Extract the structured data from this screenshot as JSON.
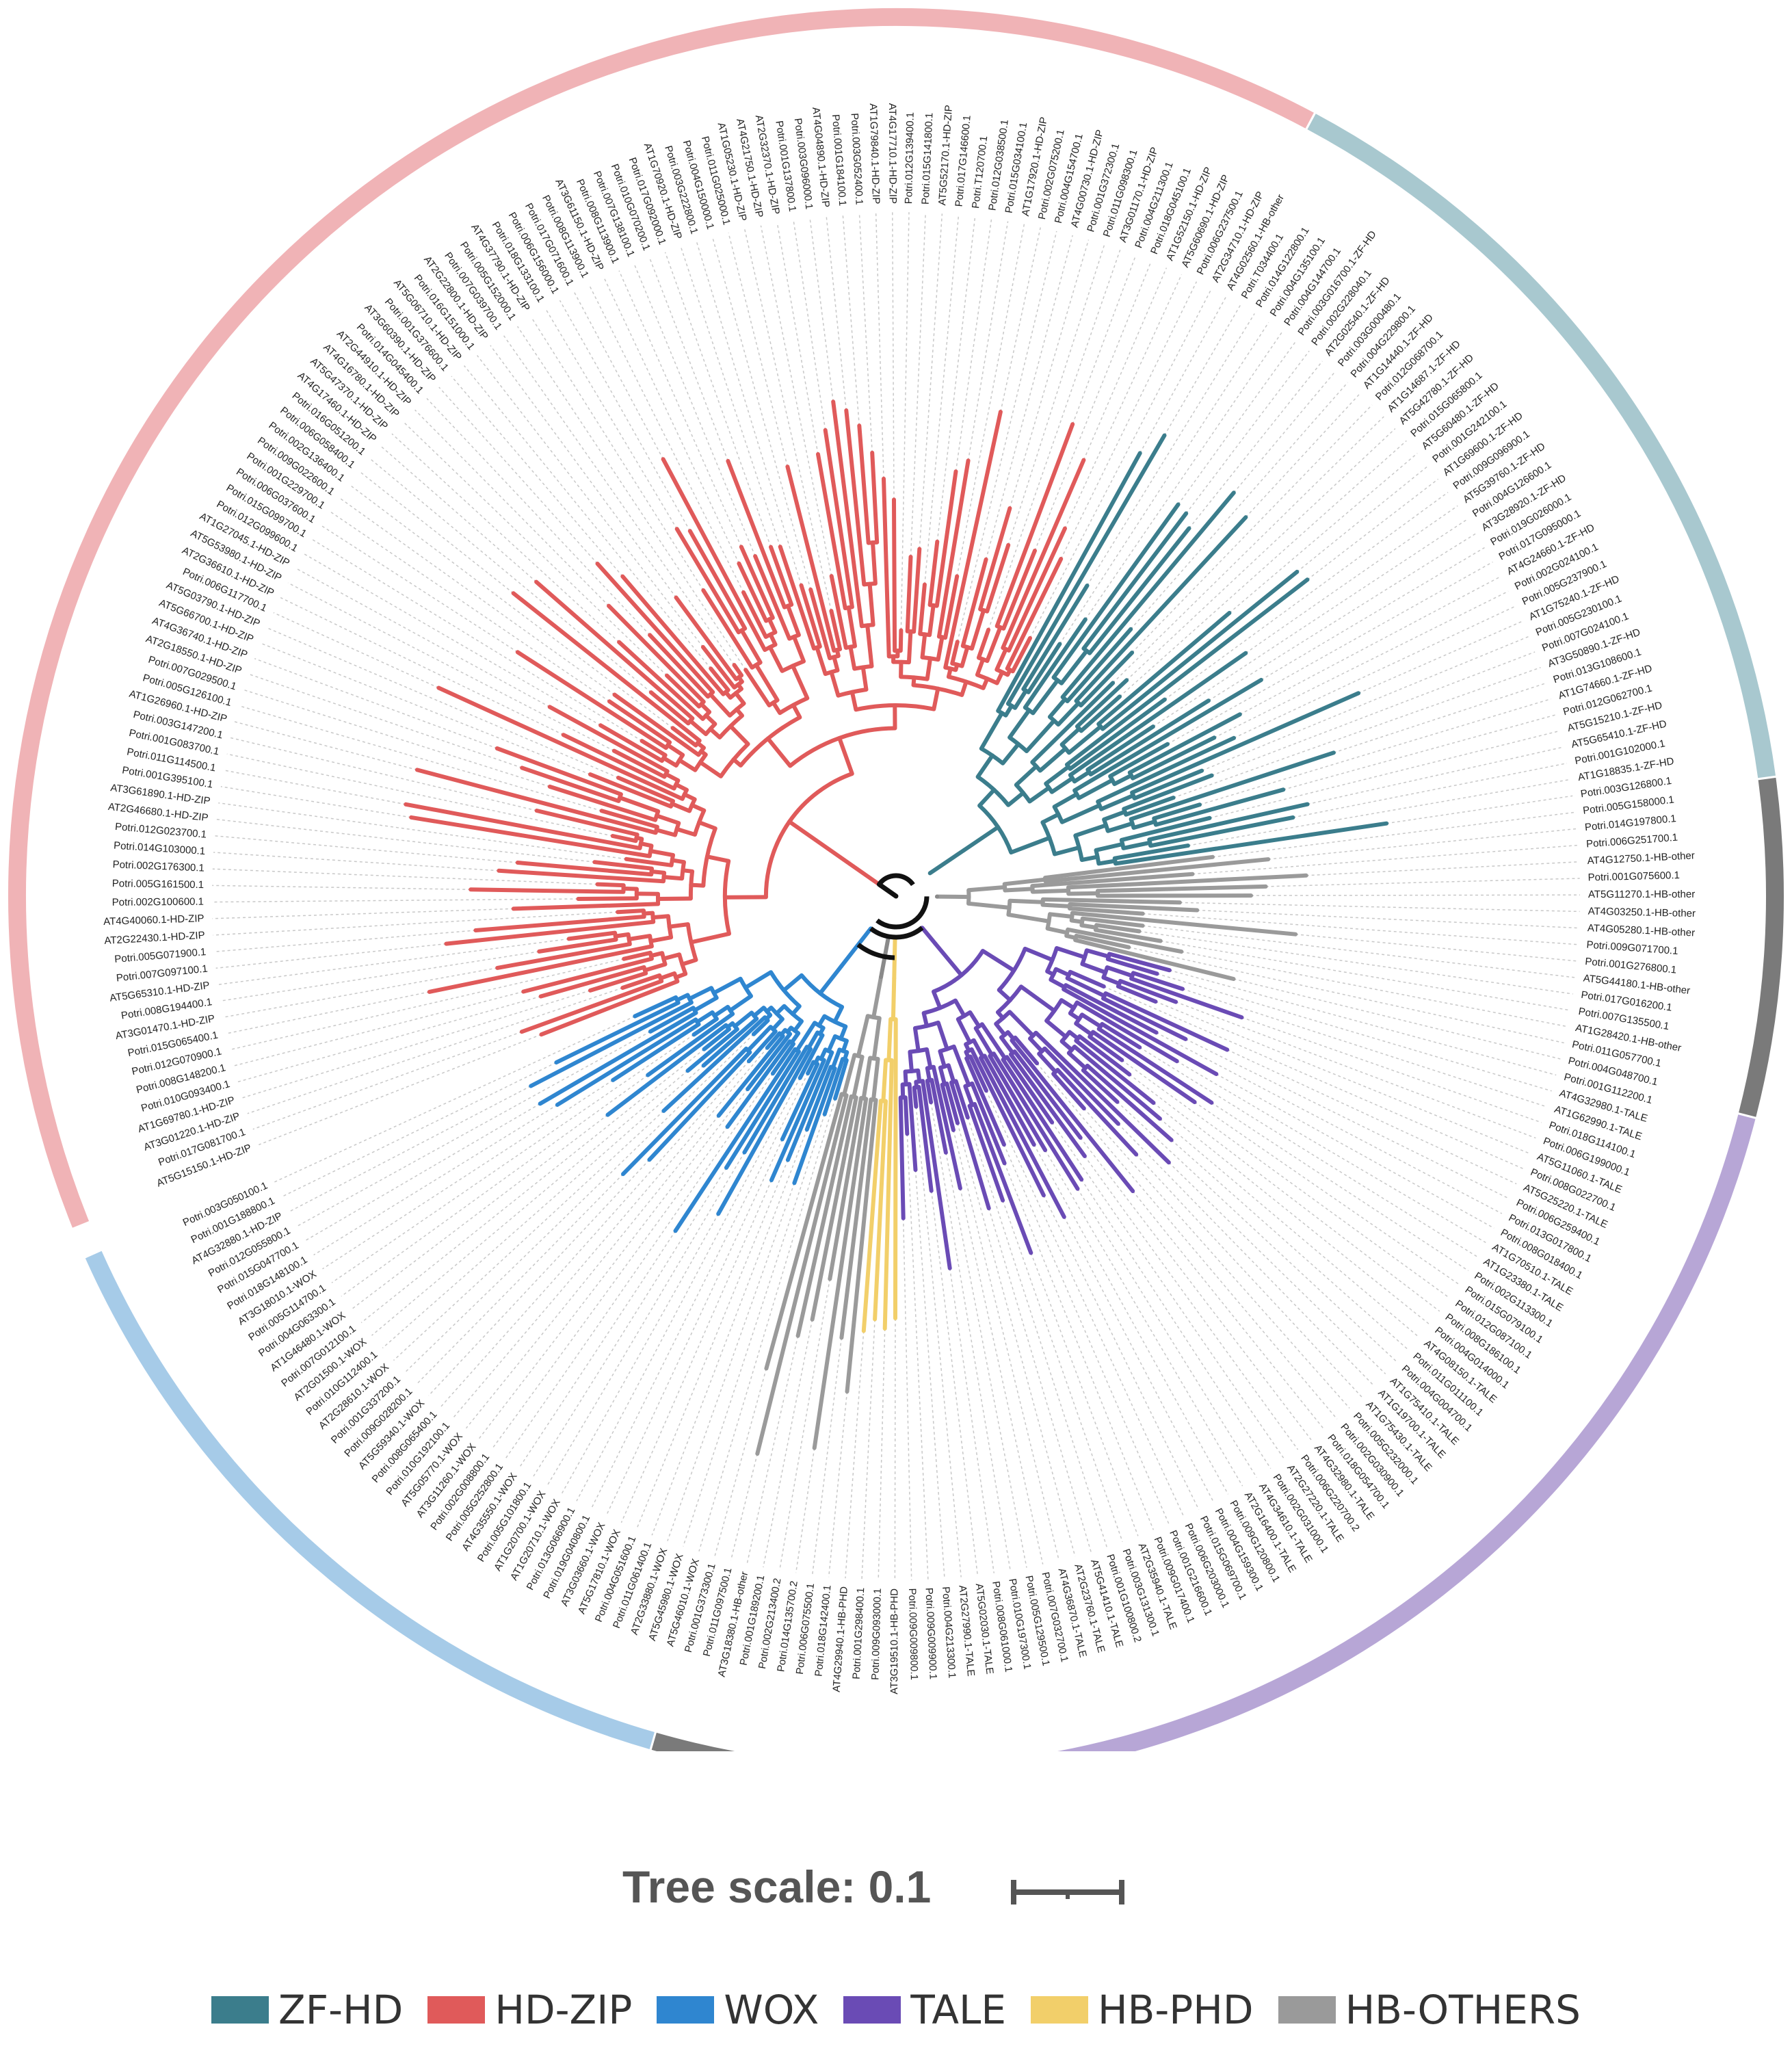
{
  "tree_scale": {
    "label": "Tree scale: 0.1"
  },
  "legend": [
    {
      "label": "ZF-HD",
      "color": "#3b7d8c"
    },
    {
      "label": "HD-ZIP",
      "color": "#e05a5a"
    },
    {
      "label": "WOX",
      "color": "#2f86d0"
    },
    {
      "label": "TALE",
      "color": "#6a4bb5"
    },
    {
      "label": "HB-PHD",
      "color": "#f2cf6a"
    },
    {
      "label": "HB-OTHERS",
      "color": "#9a9a9a"
    }
  ],
  "ring_colors": {
    "zf_hd": "#a8c8cf",
    "hd_zip": "#f0b3b6",
    "wox": "#a6cbe8",
    "tale": "#b7a6d6",
    "hb_phd": "#f7e2b0",
    "hb_other": "#7a7a7a"
  },
  "chart_data": {
    "type": "circular-phylogenetic-tree",
    "groups": [
      {
        "name": "ZF-HD",
        "tips": [
          "AT4G02560.1-HB-other",
          "Potri.T034400.1",
          "Potri.014G122800.1",
          "Potri.004G135100.1",
          "Potri.004G144700.1",
          "Potri.003G016700.1-ZF-HD",
          "Potri.002G228040.1",
          "AT2G02540.1-ZF-HD",
          "Potri.003G000480.1",
          "Potri.004G229800.1",
          "AT1G14440.1-ZF-HD",
          "Potri.012G068700.1",
          "AT1G14687.1-ZF-HD",
          "AT5G42780.1-ZF-HD",
          "Potri.015G065800.1",
          "AT5G60480.1-ZF-HD",
          "Potri.001G242100.1",
          "AT1G69600.1-ZF-HD",
          "Potri.009G096900.1",
          "AT5G39760.1-ZF-HD",
          "Potri.004G126600.1",
          "AT3G28920.1-ZF-HD",
          "Potri.019G026000.1",
          "Potri.017G095000.1",
          "AT4G24660.1-ZF-HD",
          "Potri.002G024100.1",
          "Potri.005G237900.1",
          "AT1G75240.1-ZF-HD",
          "Potri.005G230100.1",
          "Potri.007G024100.1",
          "AT3G50890.1-ZF-HD",
          "Potri.013G108600.1",
          "AT1G74660.1-ZF-HD",
          "Potri.012G062700.1",
          "AT5G15210.1-ZF-HD",
          "AT5G65410.1-ZF-HD",
          "Potri.001G102000.1",
          "AT1G18835.1-ZF-HD",
          "Potri.003G126800.1"
        ]
      },
      {
        "name": "HB-OTHERS-1",
        "tips": [
          "Potri.005G158000.1",
          "Potri.014G197800.1",
          "Potri.006G251700.1",
          "AT4G12750.1-HB-other",
          "Potri.001G075600.1",
          "AT5G11270.1-HB-other",
          "AT4G03250.1-HB-other",
          "AT4G05280.1-HB-other",
          "Potri.009G071700.1",
          "Potri.001G276800.1",
          "AT5G44180.1-HB-other",
          "Potri.017G016200.1",
          "Potri.007G135500.1",
          "AT1G28420.1-HB-other",
          "Potri.011G057700.1",
          "Potri.004G048700.1"
        ]
      },
      {
        "name": "TALE",
        "tips": [
          "Potri.001G112200.1",
          "AT4G32980.1-TALE",
          "AT1G62990.1-TALE",
          "Potri.018G114100.1",
          "Potri.006G199000.1",
          "AT5G11060.1-TALE",
          "Potri.008G022700.1",
          "AT5G25220.1-TALE",
          "Potri.006G259400.1",
          "Potri.013G017800.1",
          "Potri.008G018400.1",
          "AT1G70510.1-TALE",
          "AT1G23380.1-TALE",
          "Potri.002G113300.1",
          "Potri.015G079100.1",
          "Potri.012G087100.1",
          "Potri.008G186100.1",
          "Potri.004G014000.1",
          "AT4G08150.1-TALE",
          "Potri.011G011100.1",
          "Potri.004G004700.1",
          "AT1G75410.1-TALE",
          "AT1G19700.1-TALE",
          "AT1G75430.1-TALE",
          "Potri.005G232000.1",
          "Potri.002G030900.1",
          "Potri.018G054700.1",
          "AT4G32980.1-TALE",
          "Potri.006G220700.2",
          "AT2G27220.1-TALE",
          "Potri.002G031000.1",
          "AT4G34610.1-TALE",
          "AT2G16400.1-TALE",
          "Potri.009G120800.1",
          "Potri.004G159300.1",
          "Potri.015G069700.1",
          "Potri.006G203000.1",
          "Potri.001G216600.1",
          "Potri.009G017400.1",
          "AT2G35940.1-TALE",
          "Potri.003G131300.1",
          "Potri.001G100800.2",
          "AT5G41410.1-TALE",
          "AT2G23760.1-TALE",
          "AT4G36870.1-TALE",
          "Potri.007G032700.1",
          "Potri.005G129500.1",
          "Potri.010G197300.1",
          "Potri.008G061000.1",
          "AT5G02030.1-TALE",
          "AT2G27990.1-TALE",
          "Potri.004G213300.1",
          "Potri.009G009900.1",
          "Potri.009G009800.1"
        ]
      },
      {
        "name": "HB-PHD",
        "tips": [
          "AT3G19510.1-HB-PHD",
          "Potri.009G093000.1",
          "Potri.001G298400.1",
          "AT4G29940.1-HB-PHD"
        ]
      },
      {
        "name": "HB-OTHERS-2",
        "tips": [
          "Potri.018G142400.1",
          "Potri.006G075500.1",
          "Potri.014G135700.2",
          "Potri.002G213400.2",
          "Potri.001G189200.1",
          "AT3G18380.1-HB-other",
          "Potri.011G097500.1",
          "Potri.001G373300.1"
        ]
      },
      {
        "name": "WOX",
        "tips": [
          "AT5G46010.1-WOX",
          "AT5G45980.1-WOX",
          "AT2G33880.1-WOX",
          "Potri.011G061400.1",
          "Potri.004G051600.1",
          "AT5G17810.1-WOX",
          "AT3G03660.1-WOX",
          "Potri.019G040800.1",
          "Potri.013G066900.1",
          "AT1G20710.1-WOX",
          "AT1G20700.1-WOX",
          "Potri.005G101800.1",
          "AT4G35550.1-WOX",
          "Potri.005G252800.1",
          "Potri.002G008800.1",
          "AT3G11260.1-WOX",
          "AT5G05770.1-WOX",
          "Potri.010G192100.1",
          "Potri.008G065400.1",
          "AT5G59340.1-WOX",
          "Potri.009G028200.1",
          "Potri.001G337200.1",
          "AT2G28610.1-WOX",
          "Potri.010G112400.1",
          "AT2G01500.1-WOX",
          "Potri.007G012100.1",
          "AT1G46480.1-WOX",
          "Potri.004G063300.1",
          "Potri.005G114700.1",
          "AT3G18010.1-WOX",
          "Potri.018G148100.1",
          "Potri.015G047700.1",
          "Potri.012G055800.1",
          "AT4G32880.1-HD-ZIP",
          "Potri.001G188800.1",
          "Potri.003G050100.1"
        ]
      },
      {
        "name": "HD-ZIP",
        "tips": [
          "AT2G34710.1-HD-ZIP",
          "Potri.006G237500.1",
          "AT5G60690.1-HD-ZIP",
          "AT1G52150.1-HD-ZIP",
          "Potri.018G045100.1",
          "Potri.004G211300.1",
          "AT3G01170.1-HD-ZIP",
          "Potri.011G098300.1",
          "Potri.001G372300.1",
          "AT4G00730.1-HD-ZIP",
          "Potri.004G154700.1",
          "Potri.002G075200.1",
          "AT1G17920.1-HD-ZIP",
          "Potri.015G034100.1",
          "Potri.012G038500.1",
          "Potri.T120700.1",
          "Potri.017G146600.1",
          "AT5G52170.1-HD-ZIP",
          "Potri.015G141800.1",
          "Potri.012G139400.1",
          "AT4G17710.1-HD-ZIP",
          "AT1G79840.1-HD-ZIP",
          "Potri.003G052400.1",
          "Potri.001G184100.1",
          "AT4G04890.1-HD-ZIP",
          "Potri.003G096000.1",
          "Potri.001G137800.1",
          "AT2G32370.1-HD-ZIP",
          "AT4G21750.1-HD-ZIP",
          "AT1G05230.1-HD-ZIP",
          "Potri.011G025000.1",
          "Potri.004G150000.1",
          "Potri.003G222800.1",
          "AT1G70920.1-HD-ZIP",
          "Potri.017G092000.1",
          "Potri.010G070200.1",
          "Potri.007G138100.1",
          "Potri.008G113900.1",
          "AT3G61150.1-HD-ZIP",
          "Potri.008G113900.1",
          "Potri.017G071600.1",
          "Potri.006G156000.1",
          "Potri.018G133100.1",
          "AT4G37790.1-HD-ZIP",
          "Potri.005G152000.1",
          "Potri.007G039700.1",
          "AT2G22800.1-HD-ZIP",
          "Potri.016G151000.1",
          "AT5G06710.1-HD-ZIP",
          "Potri.001G376600.1",
          "AT3G60390.1-HD-ZIP",
          "Potri.014G045400.1",
          "AT2G44910.1-HD-ZIP",
          "AT4G16780.1-HD-ZIP",
          "AT5G47370.1-HD-ZIP",
          "AT4G17460.1-HD-ZIP",
          "Potri.016G051200.1",
          "Potri.006G058400.1",
          "Potri.002G136400.1",
          "Potri.009G022600.1",
          "Potri.001G229700.1",
          "Potri.006G037600.1",
          "Potri.015G099700.1",
          "Potri.012G099600.1",
          "AT1G27045.1-HD-ZIP",
          "AT5G53980.1-HD-ZIP",
          "AT2G36610.1-HD-ZIP",
          "Potri.006G117700.1",
          "AT5G03790.1-HD-ZIP",
          "AT5G66700.1-HD-ZIP",
          "AT4G36740.1-HD-ZIP",
          "AT2G18550.1-HD-ZIP",
          "Potri.007G029500.1",
          "Potri.005G126100.1",
          "AT1G26960.1-HD-ZIP",
          "Potri.003G147200.1",
          "Potri.001G083700.1",
          "Potri.011G114500.1",
          "Potri.001G395100.1",
          "AT3G61890.1-HD-ZIP",
          "AT2G46680.1-HD-ZIP",
          "Potri.012G023700.1",
          "Potri.014G103000.1",
          "Potri.002G176300.1",
          "Potri.005G161500.1",
          "Potri.002G100600.1",
          "AT4G40060.1-HD-ZIP",
          "AT2G22430.1-HD-ZIP",
          "Potri.005G071900.1",
          "Potri.007G097100.1",
          "AT5G65310.1-HD-ZIP",
          "Potri.008G194400.1",
          "AT3G01470.1-HD-ZIP",
          "Potri.015G065400.1",
          "Potri.012G070900.1",
          "Potri.008G148200.1",
          "Potri.010G093400.1",
          "AT1G69780.1-HD-ZIP",
          "AT3G01220.1-HD-ZIP",
          "Potri.017G081700.1",
          "AT5G15150.1-HD-ZIP"
        ]
      }
    ]
  }
}
